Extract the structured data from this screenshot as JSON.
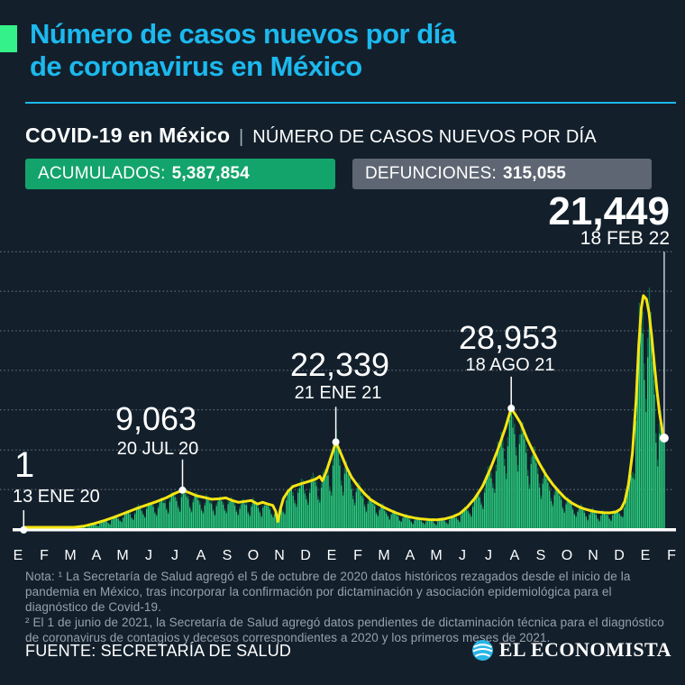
{
  "page": {
    "background": "#13202c",
    "accent_cyan": "#1cb9ee",
    "accent_green": "#35f18a"
  },
  "header": {
    "title_line1": "Número de casos nuevos por día",
    "title_line2": "de coronavirus en México",
    "subtitle_bold": "COVID-19 en México",
    "subtitle_sep": "|",
    "subtitle_rest": "NÚMERO DE CASOS NUEVOS POR DÍA",
    "badges": [
      {
        "label": "ACUMULADOS:",
        "value": "5,387,854",
        "bg": "#13a46b"
      },
      {
        "label": "DEFUNCIONES:",
        "value": "315,055",
        "bg": "#5d6672"
      }
    ]
  },
  "chart_data": {
    "type": "bar+line",
    "title": "COVID-19 en México | Número de casos nuevos por día",
    "x_axis": {
      "unit": "month",
      "range": [
        "ENE 2020",
        "FEB 2022"
      ],
      "tick_labels": [
        "E",
        "F",
        "M",
        "A",
        "M",
        "J",
        "J",
        "A",
        "S",
        "O",
        "N",
        "D",
        "E",
        "F",
        "M",
        "A",
        "M",
        "J",
        "J",
        "A",
        "S",
        "O",
        "N",
        "D",
        "E",
        "F"
      ]
    },
    "y_axis": {
      "tick_labels_visible": false,
      "grid": "dotted",
      "grid_values": [
        9200,
        18200,
        27300,
        36300,
        45300,
        54300,
        63300
      ]
    },
    "series": [
      {
        "name": "casos nuevos diarios",
        "style": "bars",
        "color_bright": "#2bcf80",
        "color_dark_tip": "#0e6d47",
        "derived_from": "smoothed line × weekly modulation",
        "weekly_modulation": [
          1.08,
          1.1,
          1.02,
          0.9,
          0.68,
          0.55,
          0.88
        ]
      },
      {
        "name": "promedio suavizado",
        "style": "line",
        "color": "#f6e513",
        "points_month_value": [
          [
            0.4,
            1
          ],
          [
            1.2,
            20
          ],
          [
            2.0,
            150
          ],
          [
            2.4,
            400
          ],
          [
            2.8,
            900
          ],
          [
            3.2,
            1500
          ],
          [
            3.6,
            2200
          ],
          [
            4.0,
            3000
          ],
          [
            4.4,
            3900
          ],
          [
            4.8,
            4800
          ],
          [
            5.2,
            5600
          ],
          [
            5.6,
            6400
          ],
          [
            6.0,
            7300
          ],
          [
            6.3,
            8200
          ],
          [
            6.65,
            9063
          ],
          [
            6.9,
            8500
          ],
          [
            7.2,
            7800
          ],
          [
            7.5,
            7400
          ],
          [
            7.8,
            7000
          ],
          [
            8.1,
            7100
          ],
          [
            8.35,
            7300
          ],
          [
            8.6,
            6700
          ],
          [
            8.85,
            6300
          ],
          [
            9.1,
            6500
          ],
          [
            9.35,
            6700
          ],
          [
            9.6,
            5900
          ],
          [
            9.8,
            6300
          ],
          [
            10.0,
            5900
          ],
          [
            10.2,
            5600
          ],
          [
            10.32,
            4200
          ],
          [
            10.4,
            1900
          ],
          [
            10.5,
            4800
          ],
          [
            10.62,
            7200
          ],
          [
            10.8,
            8800
          ],
          [
            11.0,
            9900
          ],
          [
            11.3,
            10500
          ],
          [
            11.6,
            11000
          ],
          [
            11.9,
            11600
          ],
          [
            12.05,
            12200
          ],
          [
            12.15,
            11200
          ],
          [
            12.3,
            13200
          ],
          [
            12.45,
            15800
          ],
          [
            12.68,
            20000
          ],
          [
            12.82,
            18200
          ],
          [
            12.95,
            16400
          ],
          [
            13.1,
            14300
          ],
          [
            13.3,
            12000
          ],
          [
            13.55,
            10000
          ],
          [
            13.8,
            8300
          ],
          [
            14.05,
            6900
          ],
          [
            14.3,
            6000
          ],
          [
            14.55,
            5200
          ],
          [
            14.8,
            4500
          ],
          [
            15.05,
            3900
          ],
          [
            15.3,
            3400
          ],
          [
            15.55,
            3000
          ],
          [
            15.8,
            2700
          ],
          [
            16.05,
            2500
          ],
          [
            16.35,
            2350
          ],
          [
            16.65,
            2300
          ],
          [
            16.95,
            2500
          ],
          [
            17.25,
            2950
          ],
          [
            17.55,
            3700
          ],
          [
            17.85,
            5200
          ],
          [
            18.15,
            7200
          ],
          [
            18.45,
            9900
          ],
          [
            18.75,
            13800
          ],
          [
            19.05,
            18200
          ],
          [
            19.35,
            23200
          ],
          [
            19.58,
            27700
          ],
          [
            19.75,
            26200
          ],
          [
            19.95,
            24300
          ],
          [
            20.2,
            20800
          ],
          [
            20.45,
            17800
          ],
          [
            20.7,
            15000
          ],
          [
            20.95,
            12500
          ],
          [
            21.2,
            10500
          ],
          [
            21.45,
            8800
          ],
          [
            21.7,
            7300
          ],
          [
            21.95,
            6200
          ],
          [
            22.2,
            5400
          ],
          [
            22.45,
            4800
          ],
          [
            22.7,
            4400
          ],
          [
            22.95,
            4100
          ],
          [
            23.2,
            3950
          ],
          [
            23.45,
            3900
          ],
          [
            23.7,
            4100
          ],
          [
            23.9,
            4800
          ],
          [
            24.05,
            6500
          ],
          [
            24.2,
            10500
          ],
          [
            24.35,
            17500
          ],
          [
            24.5,
            30000
          ],
          [
            24.6,
            42000
          ],
          [
            24.7,
            50500
          ],
          [
            24.78,
            53300
          ],
          [
            24.9,
            52500
          ],
          [
            25.0,
            49500
          ],
          [
            25.1,
            44500
          ],
          [
            25.2,
            38500
          ],
          [
            25.32,
            31500
          ],
          [
            25.42,
            26500
          ],
          [
            25.52,
            22800
          ],
          [
            25.6,
            20900
          ]
        ]
      }
    ],
    "annotations": [
      {
        "value_label": "1",
        "date_label": "13 ENE 20",
        "anchor_month": 0.4,
        "anchor_value": 1
      },
      {
        "value_label": "9,063",
        "date_label": "20 JUL 20",
        "anchor_month": 6.65,
        "anchor_value": 9063
      },
      {
        "value_label": "22,339",
        "date_label": "21 ENE 21",
        "anchor_month": 12.68,
        "anchor_value": 20000
      },
      {
        "value_label": "28,953",
        "date_label": "18 AGO 21",
        "anchor_month": 19.58,
        "anchor_value": 27700
      },
      {
        "value_label": "21,449",
        "date_label": "18 FEB 22",
        "anchor_month": 25.6,
        "anchor_value": 20900
      }
    ]
  },
  "footnote": {
    "line1": "Nota: ¹ La Secretaría de Salud agregó el 5 de octubre de 2020 datos históricos rezagados desde el inicio de la pandemia en México, tras incorporar la confirmación por dictaminación y asociación epidemiológica para el diagnóstico de Covid-19.",
    "line2": "² El 1 de junio de 2021, la Secretaría de Salud agregó datos pendientes de dictaminación técnica para el diagnóstico de coronavirus de contagios y decesos correspondientes a 2020 y los primeros meses de 2021."
  },
  "footer": {
    "source": "FUENTE: SECRETARÍA DE SALUD",
    "brand": "EL ECONOMISTA"
  }
}
